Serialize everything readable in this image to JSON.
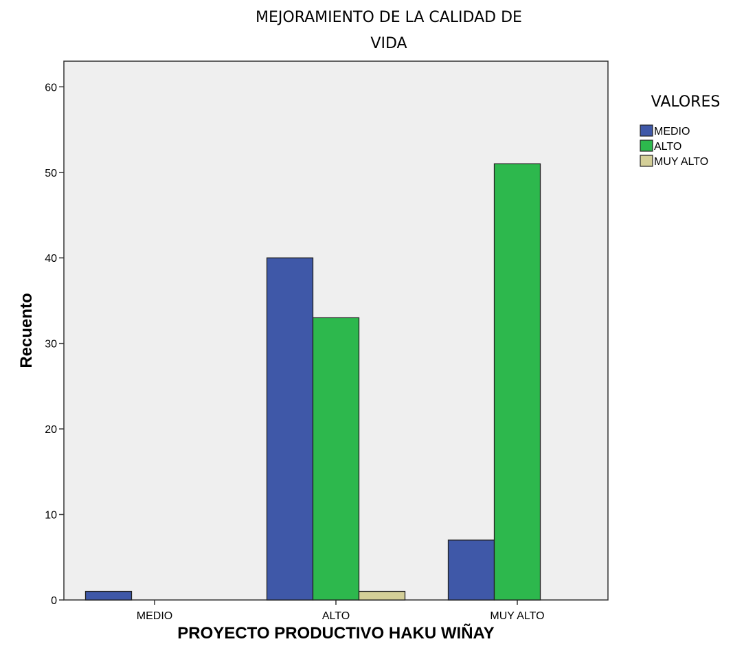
{
  "chart_data": {
    "type": "bar",
    "title_lines": [
      "MEJORAMIENTO DE LA CALIDAD DE",
      "VIDA"
    ],
    "xlabel": "PROYECTO PRODUCTIVO HAKU WIÑAY",
    "ylabel": "Recuento",
    "categories": [
      "MEDIO",
      "ALTO",
      "MUY ALTO"
    ],
    "ylim": [
      0,
      63
    ],
    "yticks": [
      0,
      10,
      20,
      30,
      40,
      50,
      60
    ],
    "grid": false,
    "legend": {
      "title": "VALORES",
      "placement": "right"
    },
    "series": [
      {
        "name": "MEDIO",
        "color": "#3f58a8",
        "values": [
          1,
          40,
          7
        ]
      },
      {
        "name": "ALTO",
        "color": "#2db84d",
        "values": [
          0,
          33,
          51
        ]
      },
      {
        "name": "MUY ALTO",
        "color": "#d4cf98",
        "values": [
          0,
          1,
          0
        ]
      }
    ],
    "plot_background": "#efefef"
  }
}
